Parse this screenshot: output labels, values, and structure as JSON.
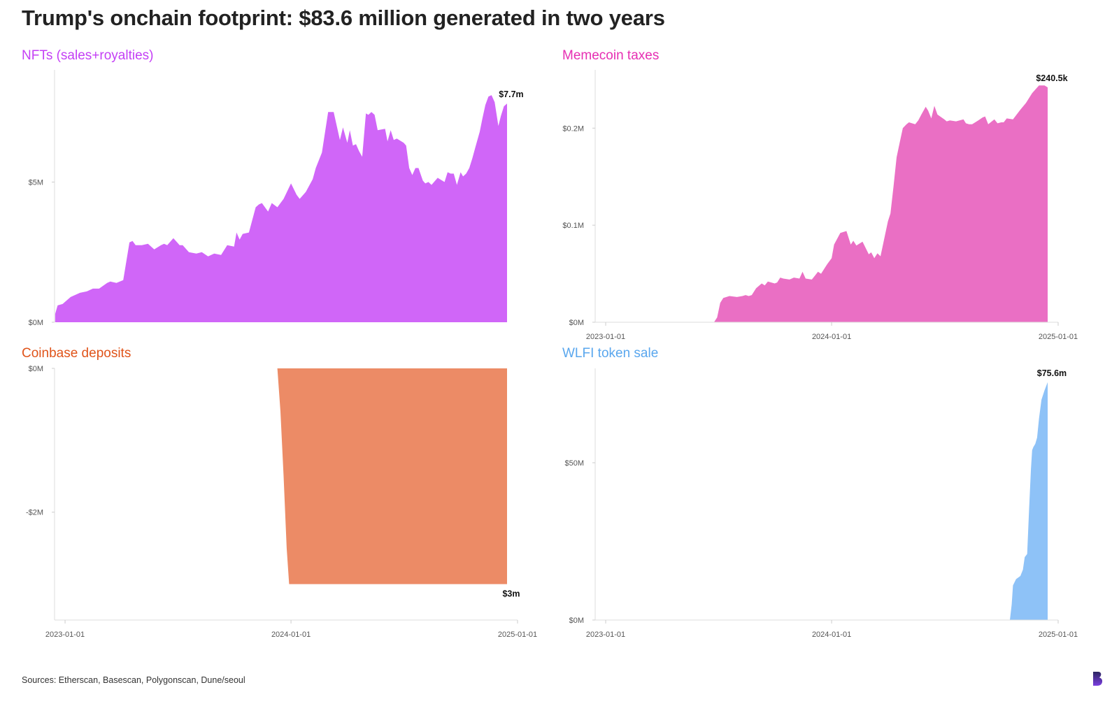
{
  "page": {
    "title": "Trump's onchain footprint: $83.6 million generated in two years",
    "source": "Sources: Etherscan, Basescan, Polygonscan, Dune/seoul"
  },
  "chart_data": [
    {
      "type": "area",
      "title": "NFTs (sales+royalties)",
      "color": "#d066f8",
      "title_color": "#c43ff5",
      "annotation": "$7.7m",
      "ylim": [
        0,
        9.0
      ],
      "xlim": [
        "2022-12-15",
        "2025-01-01"
      ],
      "yticks": [
        {
          "value": 0,
          "label": "$0M"
        },
        {
          "value": 5,
          "label": "$5M"
        }
      ],
      "xticks": [],
      "x": [
        "2022-12-16",
        "2022-12-20",
        "2022-12-28",
        "2023-01-10",
        "2023-01-25",
        "2023-02-05",
        "2023-02-15",
        "2023-02-25",
        "2023-03-10",
        "2023-03-15",
        "2023-03-25",
        "2023-04-05",
        "2023-04-15",
        "2023-04-20",
        "2023-04-25",
        "2023-05-05",
        "2023-05-15",
        "2023-05-25",
        "2023-06-05",
        "2023-06-10",
        "2023-06-15",
        "2023-06-25",
        "2023-07-05",
        "2023-07-10",
        "2023-07-20",
        "2023-08-01",
        "2023-08-10",
        "2023-08-20",
        "2023-08-30",
        "2023-09-10",
        "2023-09-20",
        "2023-10-01",
        "2023-10-05",
        "2023-10-10",
        "2023-10-15",
        "2023-10-25",
        "2023-11-05",
        "2023-11-10",
        "2023-11-15",
        "2023-11-25",
        "2023-12-01",
        "2023-12-10",
        "2023-12-20",
        "2024-01-01",
        "2024-01-10",
        "2024-01-15",
        "2024-01-25",
        "2024-02-05",
        "2024-02-10",
        "2024-02-20",
        "2024-03-01",
        "2024-03-10",
        "2024-03-20",
        "2024-03-25",
        "2024-04-01",
        "2024-04-05",
        "2024-04-10",
        "2024-04-15",
        "2024-04-20",
        "2024-04-25",
        "2024-05-01",
        "2024-05-05",
        "2024-05-10",
        "2024-05-15",
        "2024-05-20",
        "2024-06-01",
        "2024-06-05",
        "2024-06-10",
        "2024-06-15",
        "2024-06-20",
        "2024-07-01",
        "2024-07-05",
        "2024-07-10",
        "2024-07-15",
        "2024-07-20",
        "2024-07-25",
        "2024-08-01",
        "2024-08-05",
        "2024-08-10",
        "2024-08-15",
        "2024-08-25",
        "2024-09-05",
        "2024-09-10",
        "2024-09-15",
        "2024-09-20",
        "2024-09-25",
        "2024-10-01",
        "2024-10-05",
        "2024-10-10",
        "2024-10-15",
        "2024-10-20",
        "2024-10-25",
        "2024-11-01",
        "2024-11-05",
        "2024-11-10",
        "2024-11-15",
        "2024-11-20",
        "2024-11-25",
        "2024-12-01",
        "2024-12-05",
        "2024-12-10",
        "2024-12-15"
      ],
      "y": [
        0.3,
        0.6,
        0.65,
        0.9,
        1.05,
        1.1,
        1.2,
        1.2,
        1.4,
        1.45,
        1.4,
        1.5,
        2.85,
        2.9,
        2.75,
        2.75,
        2.8,
        2.6,
        2.75,
        2.8,
        2.75,
        3.0,
        2.75,
        2.75,
        2.5,
        2.45,
        2.5,
        2.35,
        2.45,
        2.4,
        2.75,
        2.7,
        3.2,
        2.95,
        3.15,
        3.2,
        4.1,
        4.2,
        4.25,
        3.95,
        4.25,
        4.1,
        4.4,
        4.95,
        4.55,
        4.4,
        4.65,
        5.1,
        5.5,
        6.05,
        7.5,
        7.5,
        6.5,
        6.95,
        6.4,
        6.85,
        6.3,
        6.35,
        6.1,
        5.9,
        7.45,
        7.4,
        7.5,
        7.4,
        6.85,
        6.9,
        6.45,
        6.85,
        6.5,
        6.55,
        6.4,
        6.3,
        5.5,
        5.25,
        5.5,
        5.5,
        5.05,
        4.95,
        5.0,
        4.9,
        5.15,
        5.0,
        5.35,
        5.3,
        5.3,
        4.9,
        5.35,
        5.2,
        5.3,
        5.5,
        5.85,
        6.25,
        6.8,
        7.25,
        7.75,
        8.05,
        8.1,
        7.85,
        7.0,
        7.35,
        7.7,
        7.8
      ]
    },
    {
      "type": "area",
      "title": "Memecoin taxes",
      "color": "#ea6fc4",
      "title_color": "#e62fb3",
      "annotation": "$240.5k",
      "ylim": [
        0,
        0.26
      ],
      "xlim": [
        "2022-12-15",
        "2025-01-01"
      ],
      "yticks": [
        {
          "value": 0,
          "label": "$0M"
        },
        {
          "value": 0.1,
          "label": "$0.1M"
        },
        {
          "value": 0.2,
          "label": "$0.2M"
        }
      ],
      "xticks": [
        {
          "value": "2023-01-01",
          "label": "2023-01-01"
        },
        {
          "value": "2024-01-01",
          "label": "2024-01-01"
        },
        {
          "value": "2025-01-01",
          "label": "2025-01-01"
        }
      ],
      "x": [
        "2023-04-01",
        "2023-06-20",
        "2023-06-25",
        "2023-06-30",
        "2023-07-05",
        "2023-07-10",
        "2023-07-20",
        "2023-08-01",
        "2023-08-10",
        "2023-08-15",
        "2023-08-20",
        "2023-08-25",
        "2023-09-01",
        "2023-09-10",
        "2023-09-15",
        "2023-09-20",
        "2023-10-01",
        "2023-10-05",
        "2023-10-10",
        "2023-10-15",
        "2023-10-25",
        "2023-11-01",
        "2023-11-10",
        "2023-11-15",
        "2023-11-20",
        "2023-11-30",
        "2023-12-05",
        "2023-12-10",
        "2023-12-15",
        "2023-12-25",
        "2024-01-01",
        "2024-01-05",
        "2024-01-15",
        "2024-01-25",
        "2024-02-01",
        "2024-02-05",
        "2024-02-10",
        "2024-02-20",
        "2024-03-01",
        "2024-03-05",
        "2024-03-10",
        "2024-03-15",
        "2024-03-20",
        "2024-04-01",
        "2024-04-05",
        "2024-04-10",
        "2024-04-15",
        "2024-04-20",
        "2024-04-25",
        "2024-05-01",
        "2024-05-05",
        "2024-05-10",
        "2024-05-15",
        "2024-05-20",
        "2024-05-25",
        "2024-06-01",
        "2024-06-05",
        "2024-06-10",
        "2024-06-15",
        "2024-06-20",
        "2024-07-01",
        "2024-07-05",
        "2024-07-10",
        "2024-07-20",
        "2024-08-01",
        "2024-08-05",
        "2024-08-10",
        "2024-08-15",
        "2024-08-25",
        "2024-09-01",
        "2024-09-05",
        "2024-09-10",
        "2024-09-20",
        "2024-09-25",
        "2024-10-01",
        "2024-10-05",
        "2024-10-10",
        "2024-10-20",
        "2024-11-01",
        "2024-11-10",
        "2024-11-20",
        "2024-12-01",
        "2024-12-10",
        "2024-12-15"
      ],
      "y": [
        0,
        0,
        0,
        0.005,
        0.02,
        0.025,
        0.027,
        0.026,
        0.027,
        0.028,
        0.027,
        0.028,
        0.035,
        0.04,
        0.038,
        0.042,
        0.04,
        0.041,
        0.046,
        0.045,
        0.044,
        0.046,
        0.045,
        0.052,
        0.045,
        0.044,
        0.048,
        0.052,
        0.05,
        0.06,
        0.066,
        0.08,
        0.092,
        0.094,
        0.08,
        0.084,
        0.079,
        0.083,
        0.07,
        0.072,
        0.066,
        0.071,
        0.068,
        0.104,
        0.112,
        0.14,
        0.17,
        0.185,
        0.2,
        0.204,
        0.206,
        0.205,
        0.204,
        0.208,
        0.214,
        0.222,
        0.218,
        0.21,
        0.223,
        0.214,
        0.209,
        0.207,
        0.208,
        0.207,
        0.209,
        0.205,
        0.204,
        0.204,
        0.208,
        0.211,
        0.212,
        0.204,
        0.209,
        0.205,
        0.206,
        0.206,
        0.21,
        0.209,
        0.219,
        0.226,
        0.236,
        0.244,
        0.244,
        0.242
      ]
    },
    {
      "type": "area",
      "title": "Coinbase deposits",
      "color": "#ec8b66",
      "title_color": "#e0541a",
      "annotation": "$3m",
      "ylim": [
        -3.5,
        0
      ],
      "xlim": [
        "2022-12-15",
        "2025-01-01"
      ],
      "yticks": [
        {
          "value": 0,
          "label": "$0M"
        },
        {
          "value": -2,
          "label": "-$2M"
        }
      ],
      "xticks": [
        {
          "value": "2023-01-01",
          "label": "2023-01-01"
        },
        {
          "value": "2024-01-01",
          "label": "2024-01-01"
        },
        {
          "value": "2025-01-01",
          "label": "2025-01-01"
        }
      ],
      "x": [
        "2023-12-10",
        "2023-12-15",
        "2023-12-20",
        "2023-12-25",
        "2023-12-29",
        "2024-01-01",
        "2024-12-15"
      ],
      "y": [
        0,
        -0.6,
        -1.5,
        -2.5,
        -3.0,
        -3.0,
        -3.0
      ]
    },
    {
      "type": "area",
      "title": "WLFI token sale",
      "color": "#8ec2f7",
      "title_color": "#5aa7ee",
      "annotation": "$75.6m",
      "ylim": [
        0,
        80
      ],
      "xlim": [
        "2022-12-15",
        "2025-01-01"
      ],
      "yticks": [
        {
          "value": 0,
          "label": "$0M"
        },
        {
          "value": 50,
          "label": "$50M"
        }
      ],
      "xticks": [
        {
          "value": "2023-01-01",
          "label": "2023-01-01"
        },
        {
          "value": "2024-01-01",
          "label": "2024-01-01"
        },
        {
          "value": "2025-01-01",
          "label": "2025-01-01"
        }
      ],
      "x": [
        "2024-10-15",
        "2024-10-18",
        "2024-10-20",
        "2024-10-25",
        "2024-11-01",
        "2024-11-05",
        "2024-11-08",
        "2024-11-10",
        "2024-11-12",
        "2024-11-15",
        "2024-11-18",
        "2024-11-20",
        "2024-11-22",
        "2024-11-25",
        "2024-11-28",
        "2024-12-01",
        "2024-12-05",
        "2024-12-10",
        "2024-12-15"
      ],
      "y": [
        0,
        5,
        11,
        13,
        14,
        16,
        20,
        20.5,
        21,
        35,
        48,
        54,
        55,
        56,
        58,
        64,
        70,
        73,
        75.6
      ]
    }
  ]
}
